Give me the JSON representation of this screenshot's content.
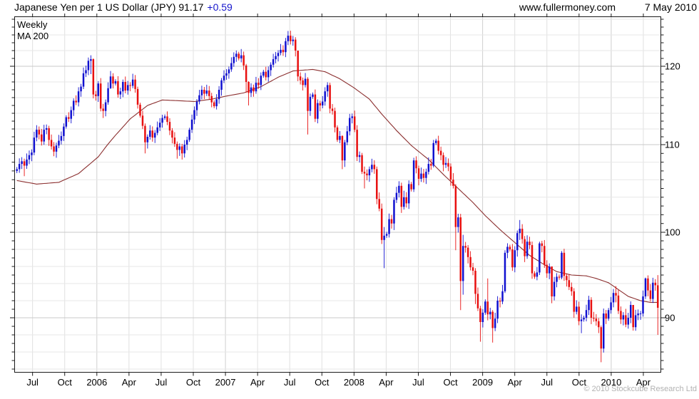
{
  "header": {
    "title_main": "Japanese Yen per 1 US Dollar (JPY) 91.17",
    "title_change": "+0.59",
    "site": "www.fullermoney.com",
    "date": "7 May 2010"
  },
  "legend": {
    "series1": "Weekly",
    "series2": "MA 200"
  },
  "footer": {
    "copyright": "© 2010 Stockcube Research Ltd"
  },
  "colors": {
    "up": "#1010d0",
    "down": "#e81010",
    "ma": "#8b2f2f",
    "legend_weekly": "#1414cc",
    "legend_ma": "#8b2f2f",
    "grid_minor": "#e7e7e7",
    "grid_major": "#c9c9c9",
    "grid_vertical": "#e0e0e0",
    "grid_vertical_year": "#cfcfcf",
    "border": "#1a1a1a",
    "text": "#000000",
    "muted": "#b2b2b2"
  },
  "chart_data": {
    "type": "candlestick",
    "instrument": "Japanese Yen per 1 US Dollar (JPY)",
    "timeframe": "Weekly",
    "overlay": "MA 200",
    "last_price": 91.17,
    "last_change": 0.59,
    "start_week": "2005-05-13",
    "end_week": "2010-05-07",
    "y_axis": {
      "ticks": [
        90,
        100,
        110,
        120
      ],
      "minor_step": 2,
      "range_visible": [
        83.6,
        126.4
      ]
    },
    "x_axis": {
      "labels": [
        "Jul",
        "Oct",
        "2006",
        "Apr",
        "Jul",
        "Oct",
        "2007",
        "Apr",
        "Jul",
        "Oct",
        "2008",
        "Apr",
        "Jul",
        "Oct",
        "2009",
        "Apr",
        "Jul",
        "Oct",
        "2010",
        "Apr"
      ],
      "year_label_indices": [
        2,
        6,
        10,
        14,
        18
      ]
    },
    "first_open": 107.0,
    "closes": [
      107.2,
      107.8,
      108.1,
      107.6,
      108.3,
      108.8,
      109.1,
      110.9,
      111.9,
      111.3,
      110.4,
      111.9,
      112.1,
      110.6,
      109.8,
      109.2,
      109.9,
      110.5,
      111.1,
      112.3,
      113.5,
      113.3,
      114.4,
      115.6,
      115.4,
      116.8,
      117.4,
      119.1,
      119.5,
      120.7,
      120.9,
      116.4,
      116.2,
      117.8,
      114.6,
      114.3,
      115.4,
      117.2,
      118.7,
      117.8,
      118.1,
      116.4,
      116.8,
      118.0,
      116.9,
      117.6,
      117.5,
      118.3,
      117.1,
      115.1,
      113.7,
      112.4,
      110.3,
      111.0,
      111.8,
      110.9,
      111.5,
      112.2,
      112.8,
      113.4,
      113.6,
      112.9,
      111.8,
      110.9,
      110.1,
      109.4,
      109.8,
      109.0,
      110.0,
      110.6,
      111.9,
      113.2,
      114.4,
      115.5,
      116.3,
      117.0,
      116.5,
      116.9,
      116.2,
      115.4,
      114.9,
      115.8,
      117.0,
      118.2,
      118.8,
      119.1,
      119.6,
      120.4,
      121.2,
      121.6,
      121.0,
      121.4,
      120.1,
      118.0,
      116.6,
      117.3,
      116.8,
      117.9,
      117.6,
      118.8,
      119.3,
      118.6,
      119.5,
      120.2,
      120.9,
      121.3,
      121.7,
      122.1,
      121.8,
      123.2,
      123.9,
      123.2,
      123.4,
      122.0,
      118.7,
      118.2,
      117.6,
      118.4,
      114.3,
      116.1,
      116.4,
      113.3,
      115.3,
      115.0,
      115.5,
      116.8,
      117.6,
      114.6,
      114.3,
      112.2,
      110.6,
      111.1,
      108.2,
      110.3,
      111.7,
      113.4,
      113.6,
      111.9,
      108.6,
      108.8,
      106.9,
      106.7,
      106.5,
      107.2,
      107.7,
      107.2,
      103.8,
      102.7,
      99.1,
      99.6,
      99.8,
      101.5,
      101.0,
      103.7,
      104.5,
      105.3,
      102.9,
      104.0,
      103.3,
      105.5,
      104.9,
      108.2,
      107.3,
      106.1,
      106.7,
      106.2,
      106.9,
      107.8,
      107.6,
      110.2,
      110.5,
      109.3,
      108.8,
      107.7,
      107.9,
      107.5,
      106.0,
      105.3,
      100.6,
      101.7,
      94.3,
      98.4,
      98.2,
      97.1,
      95.9,
      95.5,
      92.8,
      91.1,
      89.5,
      90.6,
      91.9,
      90.4,
      90.7,
      88.8,
      89.9,
      92.0,
      91.9,
      93.1,
      97.6,
      98.3,
      98.0,
      95.9,
      97.9,
      99.9,
      100.4,
      99.2,
      97.2,
      98.9,
      98.5,
      95.2,
      94.8,
      95.3,
      98.7,
      98.4,
      96.2,
      95.2,
      96.0,
      92.5,
      94.2,
      94.8,
      94.7,
      97.6,
      94.9,
      94.4,
      93.6,
      93.1,
      90.7,
      91.3,
      89.6,
      89.8,
      90.0,
      90.9,
      92.1,
      90.0,
      89.9,
      89.6,
      88.9,
      86.4,
      90.5,
      89.9,
      90.9,
      91.8,
      92.9,
      92.6,
      90.8,
      89.8,
      90.3,
      89.2,
      90.0,
      91.5,
      88.9,
      90.3,
      90.5,
      90.5,
      92.5,
      94.6,
      93.2,
      92.2,
      94.1,
      93.8,
      91.17
    ],
    "wicks": {
      "3": [
        108.4,
        106.4
      ],
      "10": [
        112.0,
        109.9
      ],
      "30": [
        121.4,
        119.0
      ],
      "31": [
        121.0,
        115.9
      ],
      "35": [
        115.2,
        113.4
      ],
      "38": [
        119.4,
        117.1
      ],
      "49": [
        117.4,
        114.6
      ],
      "52": [
        112.7,
        109.0
      ],
      "65": [
        110.4,
        108.4
      ],
      "67": [
        110.1,
        108.3
      ],
      "91": [
        122.2,
        120.5
      ],
      "93": [
        120.3,
        116.6
      ],
      "94": [
        118.1,
        115.0
      ],
      "110": [
        124.5,
        122.7
      ],
      "114": [
        121.5,
        118.1
      ],
      "118": [
        118.6,
        111.3
      ],
      "127": [
        117.9,
        114.0
      ],
      "132": [
        111.2,
        107.2
      ],
      "141": [
        107.5,
        105.0
      ],
      "146": [
        107.5,
        103.2
      ],
      "149": [
        100.6,
        95.8
      ],
      "161": [
        108.5,
        104.6
      ],
      "169": [
        110.6,
        107.4
      ],
      "178": [
        105.5,
        97.9
      ],
      "180": [
        102.1,
        90.9
      ],
      "181": [
        99.7,
        92.7
      ],
      "186": [
        95.8,
        91.6
      ],
      "188": [
        91.4,
        87.2
      ],
      "191": [
        94.6,
        89.7
      ],
      "193": [
        90.9,
        87.1
      ],
      "198": [
        97.9,
        92.9
      ],
      "204": [
        101.4,
        99.1
      ],
      "212": [
        98.9,
        95.0
      ],
      "217": [
        94.9,
        91.7
      ],
      "221": [
        97.8,
        94.5
      ],
      "229": [
        90.4,
        88.2
      ],
      "237": [
        89.1,
        84.8
      ],
      "243": [
        93.7,
        91.8
      ],
      "250": [
        90.6,
        88.5
      ],
      "255": [
        94.7,
        92.2
      ],
      "260": [
        94.99,
        88.0
      ]
    },
    "ma200": [
      [
        0,
        105.9
      ],
      [
        8,
        105.5
      ],
      [
        17,
        105.7
      ],
      [
        25,
        106.7
      ],
      [
        33,
        108.6
      ],
      [
        40,
        111.2
      ],
      [
        46,
        113.3
      ],
      [
        53,
        115.0
      ],
      [
        59,
        115.7
      ],
      [
        66,
        115.6
      ],
      [
        72,
        115.5
      ],
      [
        79,
        115.8
      ],
      [
        85,
        116.2
      ],
      [
        92,
        116.6
      ],
      [
        99,
        117.4
      ],
      [
        106,
        118.6
      ],
      [
        112,
        119.4
      ],
      [
        120,
        119.6
      ],
      [
        125,
        119.3
      ],
      [
        131,
        118.4
      ],
      [
        137,
        117.2
      ],
      [
        143,
        115.8
      ],
      [
        148,
        113.9
      ],
      [
        154,
        111.8
      ],
      [
        160,
        109.9
      ],
      [
        167,
        108.3
      ],
      [
        173,
        106.6
      ],
      [
        179,
        105.0
      ],
      [
        185,
        103.4
      ],
      [
        190,
        101.9
      ],
      [
        196,
        100.3
      ],
      [
        202,
        98.8
      ],
      [
        208,
        97.3
      ],
      [
        214,
        96.2
      ],
      [
        219,
        95.4
      ],
      [
        225,
        95.0
      ],
      [
        231,
        94.9
      ],
      [
        235,
        94.6
      ],
      [
        240,
        94.1
      ],
      [
        244,
        93.3
      ],
      [
        248,
        92.5
      ],
      [
        253,
        92.0
      ],
      [
        257,
        91.8
      ],
      [
        260,
        91.8
      ]
    ]
  }
}
